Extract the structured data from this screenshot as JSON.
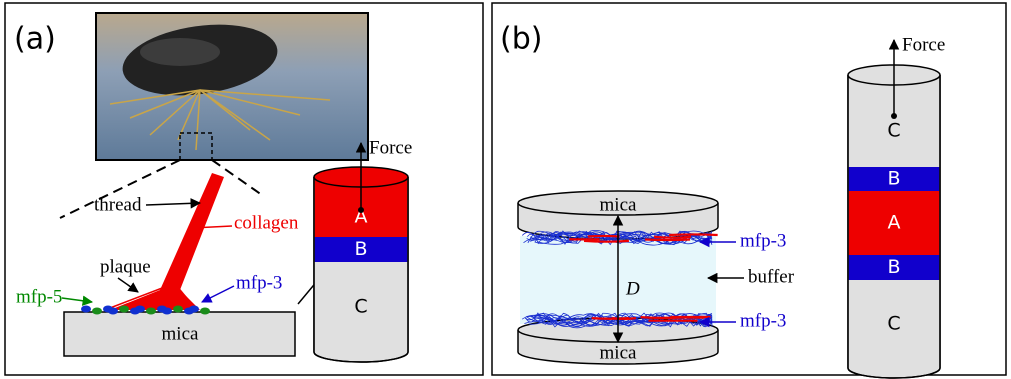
{
  "panel_a": {
    "label": "(a)",
    "thread": "thread",
    "collagen": "collagen",
    "plaque": "plaque",
    "mfp5": "mfp-5",
    "mfp3": "mfp-3",
    "mica": "mica",
    "force": "Force",
    "segments": [
      "A",
      "B",
      "C"
    ]
  },
  "panel_b": {
    "label": "(b)",
    "mica_top": "mica",
    "mica_bottom": "mica",
    "mfp3_top": "mfp-3",
    "mfp3_bottom": "mfp-3",
    "buffer": "buffer",
    "distance": "D",
    "force": "Force",
    "segments": [
      "C",
      "B",
      "A",
      "B",
      "C"
    ]
  }
}
